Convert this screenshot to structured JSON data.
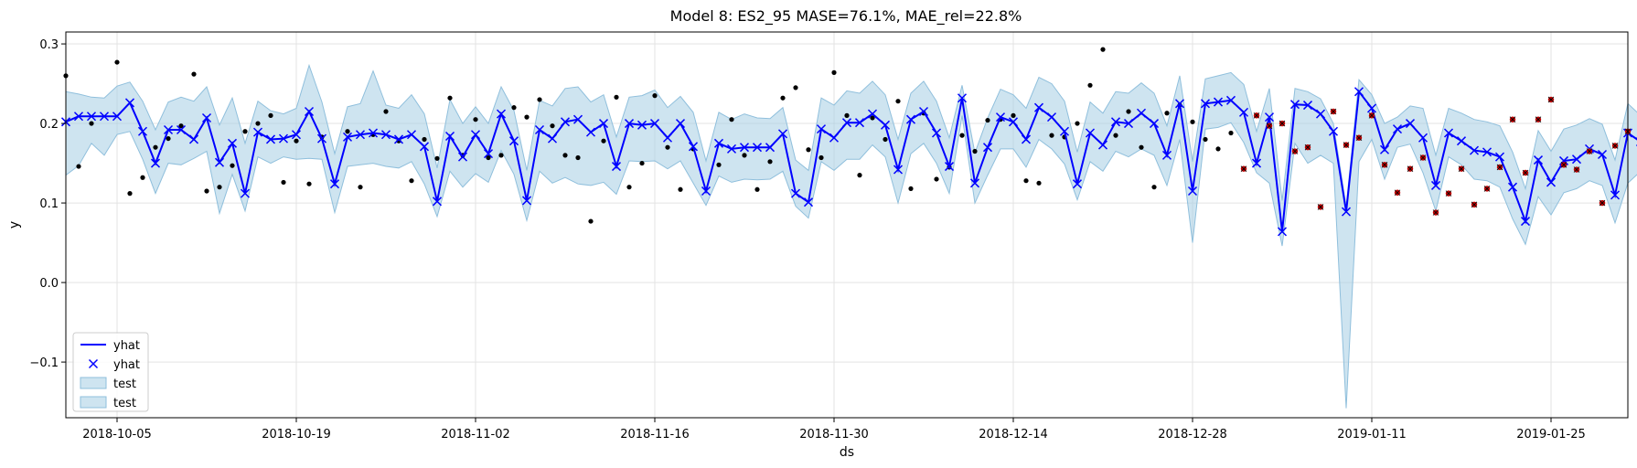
{
  "chart_data": {
    "type": "line",
    "title": "Model 8: ES2_95 MASE=76.1%, MAE_rel=22.8%",
    "xlabel": "ds",
    "ylabel": "y",
    "x_start": "2018-10-01",
    "x_end": "2019-01-31",
    "ylim": [
      -0.17,
      0.315
    ],
    "yticks": [
      -0.1,
      0.0,
      0.1,
      0.2,
      0.3
    ],
    "ytick_labels": [
      "−0.1",
      "0.0",
      "0.1",
      "0.2",
      "0.3"
    ],
    "xticks": [
      "2018-10-05",
      "2018-10-19",
      "2018-11-02",
      "2018-11-16",
      "2018-11-30",
      "2018-12-14",
      "2018-12-28",
      "2019-01-11",
      "2019-01-25"
    ],
    "grid": true,
    "legend_position": "lower-left",
    "legend": [
      {
        "label": "yhat",
        "kind": "line"
      },
      {
        "label": "yhat",
        "kind": "marker"
      },
      {
        "label": "test",
        "kind": "band"
      },
      {
        "label": "test",
        "kind": "band"
      }
    ],
    "colors": {
      "yhat": "#0000ff",
      "band": "#a6cde3",
      "band_edge": "#8fbfdc",
      "actual": "#000000",
      "outlier": "#c00000"
    },
    "yhat": [
      0.202,
      0.209,
      0.209,
      0.209,
      0.209,
      0.226,
      0.19,
      0.15,
      0.192,
      0.192,
      0.18,
      0.207,
      0.151,
      0.175,
      0.112,
      0.189,
      0.18,
      0.181,
      0.186,
      0.215,
      0.181,
      0.124,
      0.183,
      0.186,
      0.188,
      0.186,
      0.18,
      0.186,
      0.171,
      0.102,
      0.184,
      0.158,
      0.186,
      0.162,
      0.212,
      0.178,
      0.103,
      0.192,
      0.181,
      0.202,
      0.205,
      0.189,
      0.2,
      0.146,
      0.2,
      0.198,
      0.2,
      0.182,
      0.2,
      0.171,
      0.115,
      0.175,
      0.168,
      0.17,
      0.17,
      0.17,
      0.187,
      0.112,
      0.101,
      0.193,
      0.182,
      0.201,
      0.201,
      0.212,
      0.198,
      0.142,
      0.205,
      0.215,
      0.188,
      0.146,
      0.232,
      0.125,
      0.17,
      0.208,
      0.202,
      0.18,
      0.22,
      0.208,
      0.19,
      0.124,
      0.188,
      0.173,
      0.202,
      0.2,
      0.213,
      0.2,
      0.16,
      0.225,
      0.115,
      0.225,
      0.227,
      0.229,
      0.214,
      0.15,
      0.208,
      0.064,
      0.224,
      0.223,
      0.212,
      0.19,
      0.089,
      0.24,
      0.219,
      0.167,
      0.193,
      0.2,
      0.182,
      0.122,
      0.188,
      0.178,
      0.166,
      0.164,
      0.158,
      0.12,
      0.077,
      0.154,
      0.126,
      0.153,
      0.155,
      0.168,
      0.161,
      0.11,
      0.188,
      0.177,
      0.155,
      0.17
    ],
    "upper": [
      0.24,
      0.237,
      0.233,
      0.232,
      0.247,
      0.252,
      0.228,
      0.192,
      0.227,
      0.233,
      0.228,
      0.246,
      0.198,
      0.232,
      0.175,
      0.228,
      0.216,
      0.212,
      0.219,
      0.273,
      0.227,
      0.162,
      0.221,
      0.225,
      0.266,
      0.223,
      0.219,
      0.236,
      0.212,
      0.144,
      0.23,
      0.2,
      0.221,
      0.2,
      0.246,
      0.216,
      0.141,
      0.229,
      0.222,
      0.244,
      0.246,
      0.227,
      0.236,
      0.183,
      0.233,
      0.235,
      0.242,
      0.22,
      0.234,
      0.214,
      0.153,
      0.214,
      0.205,
      0.212,
      0.207,
      0.206,
      0.22,
      0.154,
      0.141,
      0.232,
      0.223,
      0.241,
      0.238,
      0.253,
      0.236,
      0.18,
      0.238,
      0.253,
      0.228,
      0.182,
      0.248,
      0.163,
      0.207,
      0.243,
      0.236,
      0.219,
      0.258,
      0.25,
      0.228,
      0.164,
      0.227,
      0.213,
      0.24,
      0.238,
      0.251,
      0.238,
      0.197,
      0.26,
      0.152,
      0.256,
      0.26,
      0.264,
      0.249,
      0.19,
      0.244,
      0.103,
      0.244,
      0.24,
      0.231,
      0.2,
      0.096,
      0.255,
      0.236,
      0.2,
      0.208,
      0.222,
      0.219,
      0.16,
      0.219,
      0.213,
      0.205,
      0.202,
      0.197,
      0.164,
      0.118,
      0.191,
      0.165,
      0.193,
      0.198,
      0.206,
      0.199,
      0.154,
      0.225,
      0.21,
      0.198,
      0.208
    ],
    "lower": [
      0.135,
      0.147,
      0.175,
      0.16,
      0.186,
      0.19,
      0.155,
      0.112,
      0.15,
      0.148,
      0.156,
      0.165,
      0.087,
      0.136,
      0.09,
      0.158,
      0.15,
      0.158,
      0.155,
      0.156,
      0.155,
      0.088,
      0.146,
      0.148,
      0.15,
      0.146,
      0.144,
      0.152,
      0.124,
      0.083,
      0.14,
      0.12,
      0.137,
      0.126,
      0.166,
      0.136,
      0.078,
      0.14,
      0.125,
      0.132,
      0.124,
      0.122,
      0.126,
      0.111,
      0.153,
      0.152,
      0.153,
      0.143,
      0.153,
      0.125,
      0.097,
      0.134,
      0.126,
      0.13,
      0.129,
      0.13,
      0.14,
      0.096,
      0.081,
      0.152,
      0.141,
      0.155,
      0.155,
      0.173,
      0.158,
      0.1,
      0.162,
      0.175,
      0.15,
      0.112,
      0.21,
      0.1,
      0.135,
      0.168,
      0.168,
      0.145,
      0.18,
      0.168,
      0.149,
      0.104,
      0.152,
      0.14,
      0.165,
      0.158,
      0.168,
      0.16,
      0.122,
      0.18,
      0.05,
      0.193,
      0.195,
      0.201,
      0.176,
      0.138,
      0.125,
      0.046,
      0.175,
      0.15,
      0.16,
      0.15,
      -0.158,
      0.152,
      0.18,
      0.13,
      0.17,
      0.174,
      0.138,
      0.09,
      0.158,
      0.148,
      0.13,
      0.128,
      0.12,
      0.08,
      0.048,
      0.108,
      0.085,
      0.113,
      0.118,
      0.128,
      0.122,
      0.075,
      0.125,
      0.14,
      0.125,
      0.135
    ],
    "actual": [
      [
        "2018-10-01",
        0.26
      ],
      [
        "2018-10-02",
        0.146
      ],
      [
        "2018-10-03",
        0.2
      ],
      [
        "2018-10-05",
        0.277
      ],
      [
        "2018-10-06",
        0.112
      ],
      [
        "2018-10-07",
        0.132
      ],
      [
        "2018-10-08",
        0.17
      ],
      [
        "2018-10-09",
        0.181
      ],
      [
        "2018-10-10",
        0.197
      ],
      [
        "2018-10-11",
        0.262
      ],
      [
        "2018-10-12",
        0.115
      ],
      [
        "2018-10-13",
        0.12
      ],
      [
        "2018-10-14",
        0.147
      ],
      [
        "2018-10-15",
        0.19
      ],
      [
        "2018-10-16",
        0.2
      ],
      [
        "2018-10-17",
        0.21
      ],
      [
        "2018-10-18",
        0.126
      ],
      [
        "2018-10-19",
        0.178
      ],
      [
        "2018-10-20",
        0.124
      ],
      [
        "2018-10-21",
        0.183
      ],
      [
        "2018-10-23",
        0.19
      ],
      [
        "2018-10-24",
        0.12
      ],
      [
        "2018-10-25",
        0.186
      ],
      [
        "2018-10-26",
        0.215
      ],
      [
        "2018-10-27",
        0.178
      ],
      [
        "2018-10-28",
        0.128
      ],
      [
        "2018-10-29",
        0.18
      ],
      [
        "2018-10-30",
        0.156
      ],
      [
        "2018-10-31",
        0.232
      ],
      [
        "2018-11-01",
        0.16
      ],
      [
        "2018-11-02",
        0.205
      ],
      [
        "2018-11-03",
        0.157
      ],
      [
        "2018-11-04",
        0.16
      ],
      [
        "2018-11-05",
        0.22
      ],
      [
        "2018-11-06",
        0.208
      ],
      [
        "2018-11-07",
        0.23
      ],
      [
        "2018-11-08",
        0.197
      ],
      [
        "2018-11-09",
        0.16
      ],
      [
        "2018-11-10",
        0.157
      ],
      [
        "2018-11-11",
        0.077
      ],
      [
        "2018-11-12",
        0.178
      ],
      [
        "2018-11-13",
        0.233
      ],
      [
        "2018-11-14",
        0.12
      ],
      [
        "2018-11-15",
        0.15
      ],
      [
        "2018-11-16",
        0.235
      ],
      [
        "2018-11-17",
        0.17
      ],
      [
        "2018-11-18",
        0.117
      ],
      [
        "2018-11-19",
        0.168
      ],
      [
        "2018-11-21",
        0.148
      ],
      [
        "2018-11-22",
        0.205
      ],
      [
        "2018-11-23",
        0.16
      ],
      [
        "2018-11-24",
        0.117
      ],
      [
        "2018-11-25",
        0.152
      ],
      [
        "2018-11-26",
        0.232
      ],
      [
        "2018-11-27",
        0.245
      ],
      [
        "2018-11-28",
        0.167
      ],
      [
        "2018-11-29",
        0.157
      ],
      [
        "2018-11-30",
        0.264
      ],
      [
        "2018-12-01",
        0.21
      ],
      [
        "2018-12-02",
        0.135
      ],
      [
        "2018-12-03",
        0.207
      ],
      [
        "2018-12-04",
        0.18
      ],
      [
        "2018-12-05",
        0.228
      ],
      [
        "2018-12-06",
        0.118
      ],
      [
        "2018-12-07",
        0.213
      ],
      [
        "2018-12-08",
        0.13
      ],
      [
        "2018-12-09",
        0.145
      ],
      [
        "2018-12-10",
        0.185
      ],
      [
        "2018-12-11",
        0.165
      ],
      [
        "2018-12-12",
        0.204
      ],
      [
        "2018-12-13",
        0.205
      ],
      [
        "2018-12-14",
        0.21
      ],
      [
        "2018-12-15",
        0.128
      ],
      [
        "2018-12-16",
        0.125
      ],
      [
        "2018-12-17",
        0.185
      ],
      [
        "2018-12-18",
        0.183
      ],
      [
        "2018-12-19",
        0.2
      ],
      [
        "2018-12-20",
        0.248
      ],
      [
        "2018-12-21",
        0.293
      ],
      [
        "2018-12-22",
        0.185
      ],
      [
        "2018-12-23",
        0.215
      ],
      [
        "2018-12-24",
        0.17
      ],
      [
        "2018-12-25",
        0.12
      ],
      [
        "2018-12-26",
        0.213
      ],
      [
        "2018-12-27",
        0.223
      ],
      [
        "2018-12-28",
        0.202
      ],
      [
        "2018-12-29",
        0.18
      ],
      [
        "2018-12-30",
        0.168
      ],
      [
        "2018-12-31",
        0.188
      ]
    ],
    "outliers": [
      [
        "2019-01-01",
        0.143
      ],
      [
        "2019-01-02",
        0.21
      ],
      [
        "2019-01-03",
        0.197
      ],
      [
        "2019-01-04",
        0.2
      ],
      [
        "2019-01-05",
        0.165
      ],
      [
        "2019-01-06",
        0.17
      ],
      [
        "2019-01-07",
        0.095
      ],
      [
        "2019-01-08",
        0.215
      ],
      [
        "2019-01-09",
        0.173
      ],
      [
        "2019-01-10",
        0.182
      ],
      [
        "2019-01-11",
        0.21
      ],
      [
        "2019-01-12",
        0.148
      ],
      [
        "2019-01-13",
        0.113
      ],
      [
        "2019-01-14",
        0.143
      ],
      [
        "2019-01-15",
        0.157
      ],
      [
        "2019-01-16",
        0.088
      ],
      [
        "2019-01-17",
        0.112
      ],
      [
        "2019-01-18",
        0.143
      ],
      [
        "2019-01-19",
        0.098
      ],
      [
        "2019-01-20",
        0.118
      ],
      [
        "2019-01-21",
        0.145
      ],
      [
        "2019-01-22",
        0.205
      ],
      [
        "2019-01-23",
        0.138
      ],
      [
        "2019-01-24",
        0.205
      ],
      [
        "2019-01-25",
        0.23
      ],
      [
        "2019-01-26",
        0.148
      ],
      [
        "2019-01-27",
        0.142
      ],
      [
        "2019-01-28",
        0.165
      ],
      [
        "2019-01-29",
        0.1
      ],
      [
        "2019-01-30",
        0.172
      ],
      [
        "2019-01-31",
        0.19
      ]
    ]
  }
}
